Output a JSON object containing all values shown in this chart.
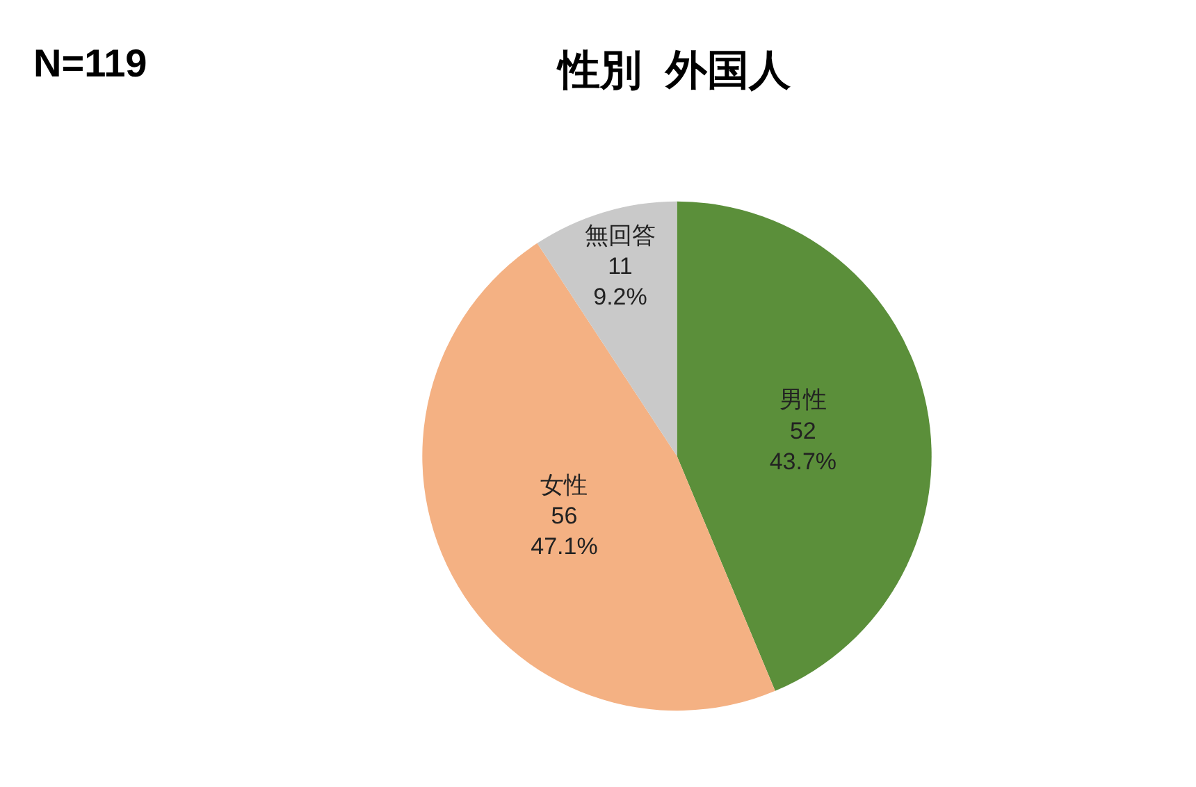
{
  "chart_data": {
    "type": "pie",
    "title": "性別  外国人",
    "annotations": [
      "N=119"
    ],
    "categories": [
      "男性",
      "女性",
      "無回答"
    ],
    "values": [
      52,
      56,
      11
    ],
    "value_labels": [
      "52\n43.7%",
      "56\n47.1%",
      "11\n9.2%"
    ],
    "colors": [
      "#5b8f3a",
      "#f4b183",
      "#c9c9c9"
    ],
    "legend": false
  }
}
